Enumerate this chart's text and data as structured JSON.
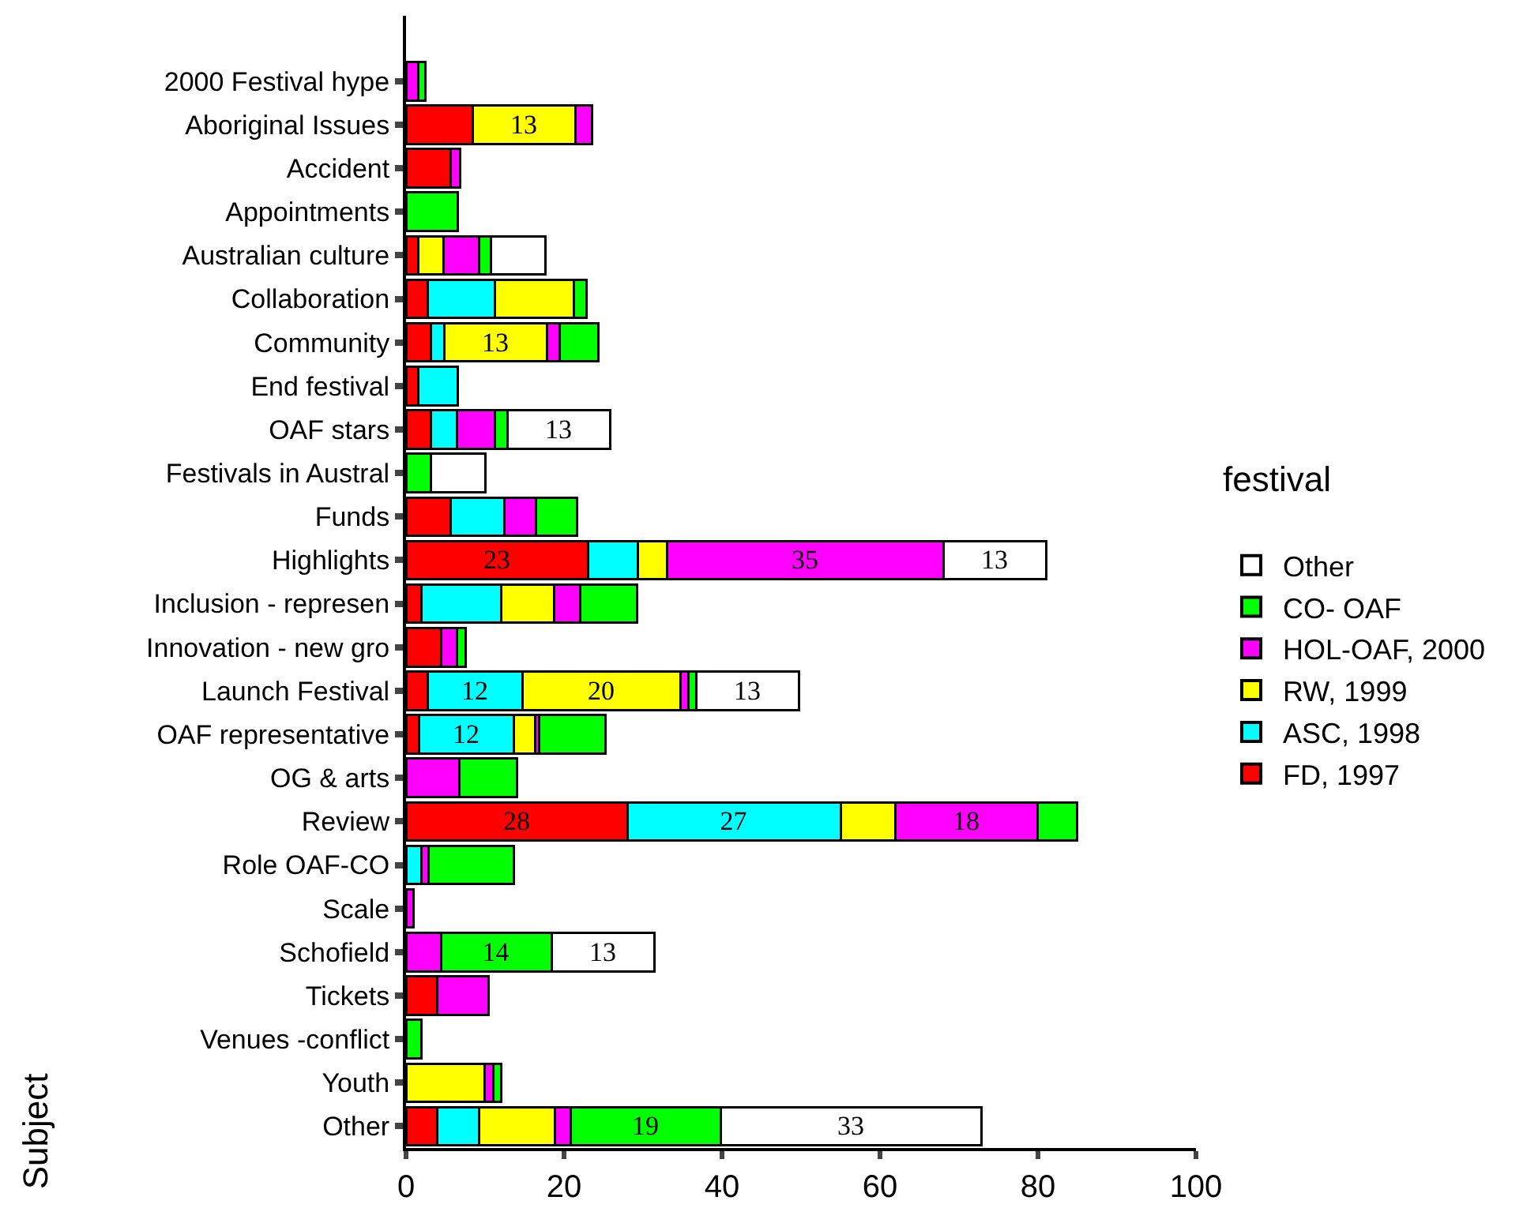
{
  "chart_data": {
    "type": "bar",
    "orientation": "horizontal",
    "stacked": true,
    "ylabel": "Subject",
    "legend_title": "festival",
    "legend": "right",
    "grid": false,
    "categories": [
      "2000 Festival hype",
      "Aboriginal Issues",
      "Accident",
      "Appointments",
      "Australian culture",
      "Collaboration",
      "Community",
      "End festival",
      "OAF stars",
      "Festivals in Austral",
      "Funds",
      "Highlights",
      "Inclusion - represen",
      "Innovation - new gro",
      "Launch Festival",
      "OAF representative",
      "OG & arts",
      "Review",
      "Role OAF-CO",
      "Scale",
      "Schofield",
      "Tickets",
      "Venues -conflict",
      "Youth",
      "Other"
    ],
    "xlim": [
      0,
      100
    ],
    "xticks": [
      0,
      20,
      40,
      60,
      80,
      100
    ],
    "series": [
      {
        "name": "FD, 1997",
        "color": "#ff0000",
        "values": [
          null,
          8.4,
          5.6,
          null,
          1.5,
          2.7,
          3.1,
          1.5,
          3.1,
          null,
          5.6,
          23,
          1.9,
          4.4,
          2.7,
          1.6,
          null,
          28,
          null,
          null,
          null,
          3.9,
          null,
          null,
          3.9
        ],
        "value_labels": [
          null,
          null,
          null,
          null,
          null,
          null,
          null,
          null,
          null,
          null,
          null,
          "23",
          null,
          null,
          null,
          null,
          null,
          "28",
          null,
          null,
          null,
          null,
          null,
          null,
          null
        ]
      },
      {
        "name": "ASC, 1998",
        "color": "#00ffff",
        "values": [
          null,
          null,
          null,
          null,
          null,
          8.5,
          1.7,
          5,
          3.3,
          null,
          6.8,
          6.3,
          10.1,
          null,
          12,
          12,
          null,
          27,
          1.9,
          null,
          null,
          null,
          null,
          null,
          5.3
        ],
        "value_labels": [
          null,
          null,
          null,
          null,
          null,
          null,
          null,
          null,
          null,
          null,
          null,
          null,
          null,
          null,
          "12",
          "12",
          null,
          "27",
          null,
          null,
          null,
          null,
          null,
          null,
          null
        ]
      },
      {
        "name": "RW, 1999",
        "color": "#ffff00",
        "values": [
          null,
          13,
          null,
          null,
          3.2,
          10,
          13,
          null,
          null,
          null,
          null,
          3.7,
          6.7,
          null,
          20,
          2.7,
          null,
          6.9,
          null,
          null,
          null,
          null,
          null,
          9.9,
          9.6
        ],
        "value_labels": [
          null,
          "13",
          null,
          null,
          null,
          null,
          "13",
          null,
          null,
          null,
          null,
          null,
          null,
          null,
          "20",
          null,
          null,
          null,
          null,
          null,
          null,
          null,
          null,
          null,
          null
        ]
      },
      {
        "name": "HOL-OAF, 2000",
        "color": "#ff00ff",
        "values": [
          1.5,
          2.1,
          1.2,
          null,
          4.5,
          null,
          1.6,
          null,
          4.8,
          null,
          4,
          35,
          3.3,
          2,
          1,
          0.5,
          6.7,
          18,
          0.9,
          0.9,
          4.4,
          6.5,
          null,
          1.1,
          2
        ],
        "value_labels": [
          null,
          null,
          null,
          null,
          null,
          null,
          null,
          null,
          null,
          null,
          null,
          "35",
          null,
          null,
          null,
          null,
          null,
          "18",
          null,
          null,
          null,
          null,
          null,
          null,
          null
        ]
      },
      {
        "name": "CO- OAF",
        "color": "#00ff00",
        "values": [
          0.9,
          null,
          null,
          6.5,
          1.5,
          1.6,
          4.9,
          null,
          1.6,
          3.1,
          5.2,
          null,
          7.2,
          1.1,
          1,
          8.4,
          7.3,
          5,
          10.8,
          null,
          14,
          null,
          1.9,
          1,
          19
        ],
        "value_labels": [
          null,
          null,
          null,
          null,
          null,
          null,
          null,
          null,
          null,
          null,
          null,
          null,
          null,
          null,
          null,
          null,
          null,
          null,
          null,
          null,
          "14",
          null,
          null,
          null,
          "19"
        ]
      },
      {
        "name": "Other",
        "color": "#ffffff",
        "values": [
          null,
          null,
          null,
          null,
          6.9,
          null,
          null,
          null,
          13,
          6.9,
          null,
          13,
          null,
          null,
          13,
          null,
          null,
          null,
          null,
          null,
          13,
          null,
          null,
          null,
          33
        ],
        "value_labels": [
          null,
          null,
          null,
          null,
          null,
          null,
          null,
          null,
          "13",
          null,
          null,
          "13",
          null,
          null,
          "13",
          null,
          null,
          null,
          null,
          null,
          "13",
          null,
          null,
          null,
          "33"
        ]
      }
    ]
  }
}
